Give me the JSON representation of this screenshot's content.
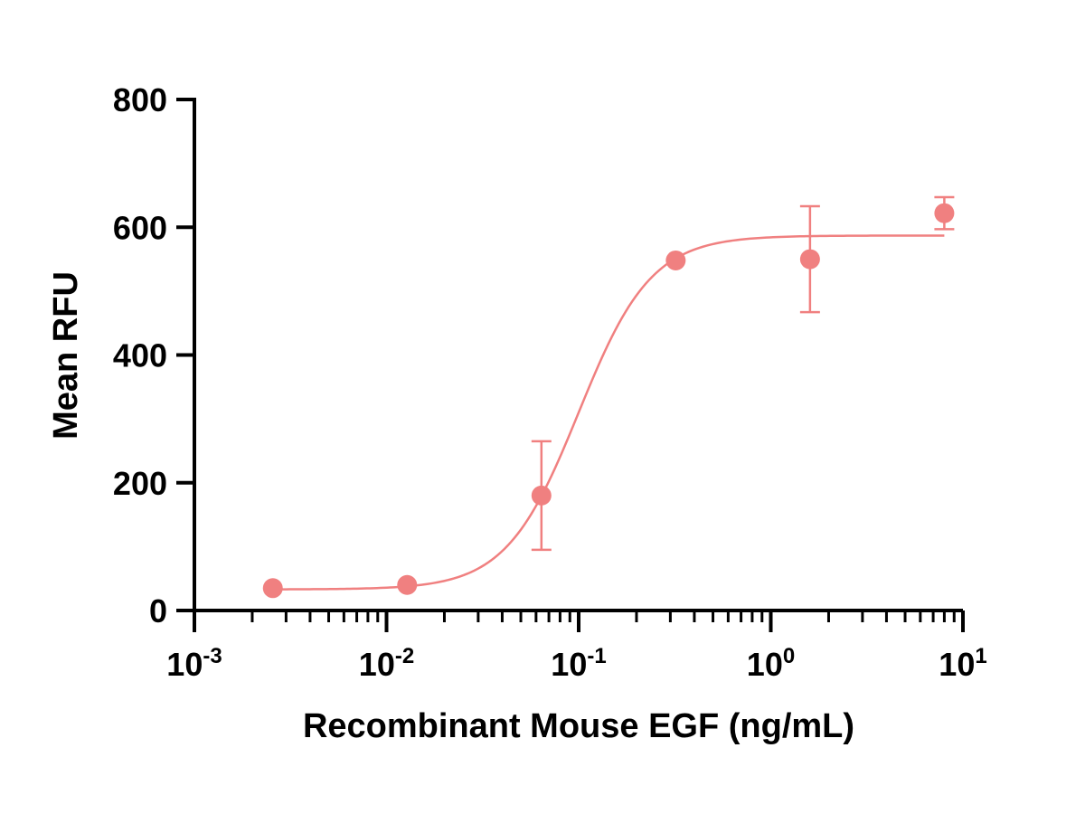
{
  "chart_data": {
    "type": "scatter",
    "xlabel": "Recombinant Mouse EGF (ng/mL)",
    "ylabel": "Mean RFU",
    "x_scale": "log",
    "xlim": [
      0.001,
      10
    ],
    "ylim": [
      0,
      800
    ],
    "x_ticks": [
      {
        "value": 0.001,
        "base": "10",
        "exp": "-3"
      },
      {
        "value": 0.01,
        "base": "10",
        "exp": "-2"
      },
      {
        "value": 0.1,
        "base": "10",
        "exp": "-1"
      },
      {
        "value": 1,
        "base": "10",
        "exp": "0"
      },
      {
        "value": 10,
        "base": "10",
        "exp": "1"
      }
    ],
    "y_ticks": [
      "0",
      "200",
      "400",
      "600",
      "800"
    ],
    "grid": false,
    "color": "#F08080",
    "series": [
      {
        "points": [
          {
            "x": 0.00256,
            "y": 35,
            "err": 0
          },
          {
            "x": 0.0128,
            "y": 40,
            "err": 0
          },
          {
            "x": 0.064,
            "y": 180,
            "err": 85
          },
          {
            "x": 0.32,
            "y": 548,
            "err": 0
          },
          {
            "x": 1.6,
            "y": 550,
            "err": 83
          },
          {
            "x": 8.0,
            "y": 622,
            "err": 25
          }
        ],
        "fit": {
          "model": "4PL",
          "bottom": 33,
          "top": 587,
          "ec50": 0.1,
          "hill": 2.3
        }
      }
    ]
  }
}
